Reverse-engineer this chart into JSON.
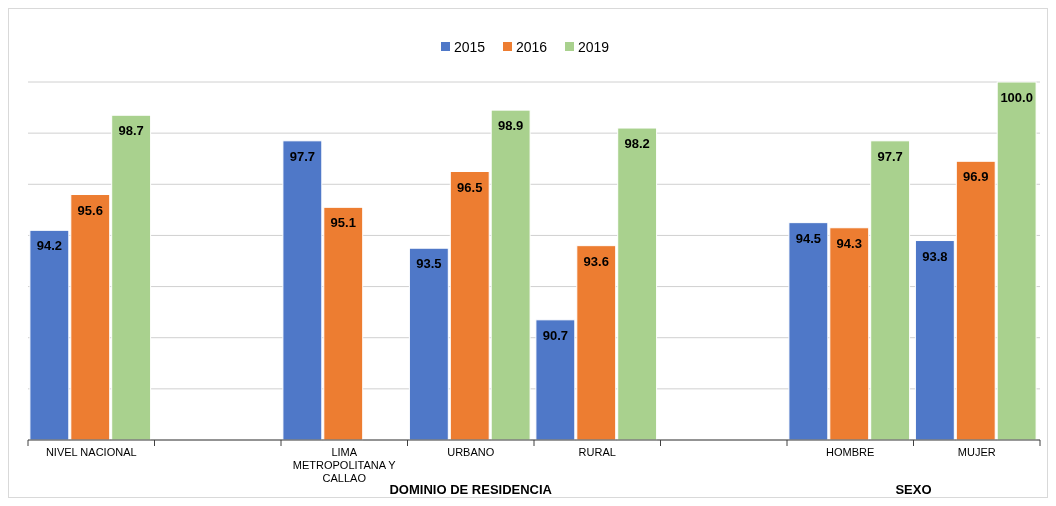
{
  "chart_data": {
    "type": "bar",
    "categories": [
      "NIVEL NACIONAL",
      null,
      "LIMA METROPOLITANA Y CALLAO",
      "URBANO",
      "RURAL",
      null,
      "HOMBRE",
      "MUJER"
    ],
    "series": [
      {
        "name": "2015",
        "color": "#4f78c8",
        "values": [
          94.2,
          null,
          97.7,
          93.5,
          90.7,
          null,
          94.5,
          93.8
        ],
        "value_labels": [
          "94.2",
          null,
          "97.7",
          "93.5",
          "90.7",
          null,
          "94.5",
          "93.8"
        ]
      },
      {
        "name": "2016",
        "color": "#ed7d31",
        "values": [
          95.6,
          null,
          95.1,
          96.5,
          93.6,
          null,
          94.3,
          96.9
        ],
        "value_labels": [
          "95.6",
          null,
          "95.1",
          "96.5",
          "93.6",
          null,
          "94.3",
          "96.9"
        ]
      },
      {
        "name": "2019",
        "color": "#a9d18e",
        "values": [
          98.7,
          null,
          null,
          98.9,
          98.2,
          null,
          97.7,
          100.0
        ],
        "value_labels": [
          "98.7",
          null,
          null,
          "98.9",
          "98.2",
          null,
          "97.7",
          "100.0"
        ]
      }
    ],
    "ylim": [
      86,
      100
    ],
    "yticks": [
      {
        "value": 86,
        "label": null
      },
      {
        "value": 88,
        "label": null
      },
      {
        "value": 90,
        "label": null
      },
      {
        "value": 92,
        "label": null
      },
      {
        "value": 94,
        "label": null
      },
      {
        "value": 96,
        "label": null
      },
      {
        "value": 98,
        "label": null
      },
      {
        "value": 100,
        "label": null
      }
    ],
    "grid": "y",
    "legend": "top",
    "tick_labels": "x",
    "annotations": [
      "DOMINIO DE RESIDENCIA",
      "SEXO"
    ]
  }
}
